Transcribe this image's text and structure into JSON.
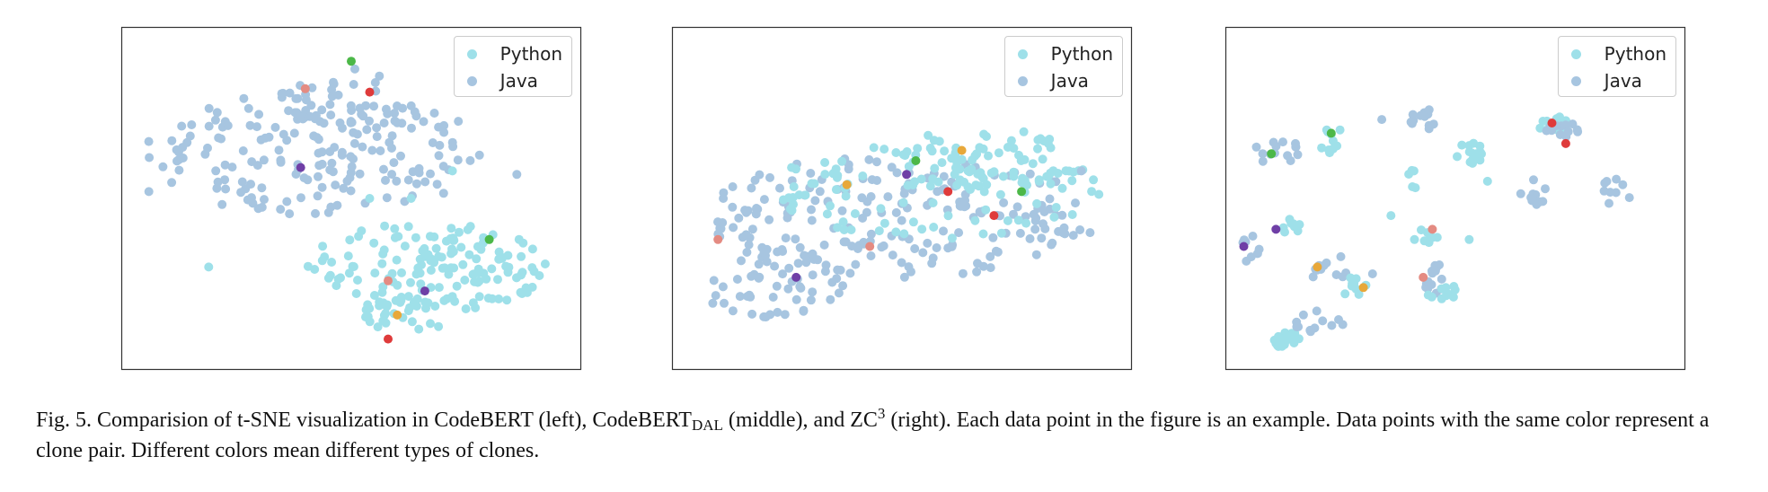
{
  "colors": {
    "python": "#9ee0e9",
    "java": "#a7c5e0",
    "clone_red": "#df3b3b",
    "clone_pink": "#e48b82",
    "clone_green": "#4cb848",
    "clone_purple": "#6f3fa6",
    "clone_orange": "#e8a83a",
    "frame": "#333333"
  },
  "legend": {
    "python": "Python",
    "java": "Java"
  },
  "caption": {
    "part1": "Fig. 5.  Comparision of t-SNE visualization in CodeBERT (left), CodeBERT",
    "sub": "DAL",
    "part2": " (middle), and ZC",
    "sup": "3",
    "part3": " (right). Each data point in the figure is an example. Data points with the same color represent a clone pair. Different colors mean different types of clones."
  },
  "chart_data": [
    {
      "type": "scatter",
      "panel": "left",
      "legend": [
        "Python",
        "Java"
      ],
      "legend_placement": "top-right",
      "grid": false,
      "axes_ticks": false,
      "xlim": [
        0,
        1
      ],
      "ylim": [
        0,
        1
      ],
      "clusters": [
        {
          "series": "Java",
          "cx": 0.42,
          "cy": 0.63,
          "rx": 0.37,
          "ry": 0.18,
          "n": 170,
          "seed": 11
        },
        {
          "series": "Java",
          "cx": 0.5,
          "cy": 0.76,
          "rx": 0.15,
          "ry": 0.12,
          "n": 45,
          "seed": 12
        },
        {
          "series": "Python",
          "cx": 0.67,
          "cy": 0.3,
          "rx": 0.27,
          "ry": 0.13,
          "n": 150,
          "seed": 13
        },
        {
          "series": "Python",
          "cx": 0.62,
          "cy": 0.17,
          "rx": 0.12,
          "ry": 0.06,
          "n": 25,
          "seed": 14
        }
      ],
      "extra_points": [
        {
          "series": "Python",
          "x": 0.19,
          "y": 0.3
        },
        {
          "series": "Python",
          "x": 0.72,
          "y": 0.58
        },
        {
          "series": "Python",
          "x": 0.63,
          "y": 0.5
        },
        {
          "series": "Python",
          "x": 0.54,
          "y": 0.5
        },
        {
          "series": "Java",
          "x": 0.06,
          "y": 0.52
        },
        {
          "series": "Java",
          "x": 0.86,
          "y": 0.57
        }
      ],
      "clone_pairs": [
        {
          "color": "red",
          "points": [
            [
              0.54,
              0.81
            ],
            [
              0.58,
              0.09
            ]
          ]
        },
        {
          "color": "green",
          "points": [
            [
              0.5,
              0.9
            ],
            [
              0.8,
              0.38
            ]
          ]
        },
        {
          "color": "pink",
          "points": [
            [
              0.4,
              0.82
            ],
            [
              0.58,
              0.26
            ]
          ]
        },
        {
          "color": "purple",
          "points": [
            [
              0.39,
              0.59
            ],
            [
              0.66,
              0.23
            ]
          ]
        },
        {
          "color": "orange",
          "points": [
            [
              0.6,
              0.16
            ]
          ]
        }
      ]
    },
    {
      "type": "scatter",
      "panel": "middle",
      "legend": [
        "Python",
        "Java"
      ],
      "legend_placement": "top-right",
      "grid": false,
      "axes_ticks": false,
      "xlim": [
        0,
        1
      ],
      "ylim": [
        0,
        1
      ],
      "clusters": [
        {
          "series": "Java",
          "cx": 0.5,
          "cy": 0.45,
          "rx": 0.43,
          "ry": 0.18,
          "n": 200,
          "seed": 21
        },
        {
          "series": "Java",
          "cx": 0.22,
          "cy": 0.25,
          "rx": 0.16,
          "ry": 0.1,
          "n": 55,
          "seed": 22
        },
        {
          "series": "Python",
          "cx": 0.58,
          "cy": 0.52,
          "rx": 0.36,
          "ry": 0.14,
          "n": 110,
          "seed": 23
        },
        {
          "series": "Python",
          "cx": 0.68,
          "cy": 0.62,
          "rx": 0.18,
          "ry": 0.09,
          "n": 50,
          "seed": 24
        }
      ],
      "extra_points": [
        {
          "series": "Java",
          "x": 0.89,
          "y": 0.58
        },
        {
          "series": "Java",
          "x": 0.85,
          "y": 0.4
        },
        {
          "series": "Python",
          "x": 0.26,
          "y": 0.59
        }
      ],
      "clone_pairs": [
        {
          "color": "red",
          "points": [
            [
              0.6,
              0.52
            ],
            [
              0.7,
              0.45
            ]
          ]
        },
        {
          "color": "green",
          "points": [
            [
              0.53,
              0.61
            ],
            [
              0.76,
              0.52
            ]
          ]
        },
        {
          "color": "pink",
          "points": [
            [
              0.1,
              0.38
            ],
            [
              0.43,
              0.36
            ]
          ]
        },
        {
          "color": "purple",
          "points": [
            [
              0.51,
              0.57
            ],
            [
              0.27,
              0.27
            ]
          ]
        },
        {
          "color": "orange",
          "points": [
            [
              0.38,
              0.54
            ],
            [
              0.63,
              0.64
            ]
          ]
        }
      ]
    },
    {
      "type": "scatter",
      "panel": "right",
      "legend": [
        "Python",
        "Java"
      ],
      "legend_placement": "top-right",
      "grid": false,
      "axes_ticks": false,
      "xlim": [
        0,
        1
      ],
      "ylim": [
        0,
        1
      ],
      "clusters": [
        {
          "series": "Java",
          "cx": 0.11,
          "cy": 0.64,
          "rx": 0.05,
          "ry": 0.04,
          "n": 14,
          "seed": 31
        },
        {
          "series": "Python",
          "cx": 0.23,
          "cy": 0.67,
          "rx": 0.03,
          "ry": 0.04,
          "n": 10,
          "seed": 32
        },
        {
          "series": "Java",
          "cx": 0.44,
          "cy": 0.73,
          "rx": 0.04,
          "ry": 0.03,
          "n": 12,
          "seed": 33
        },
        {
          "series": "Python",
          "cx": 0.53,
          "cy": 0.63,
          "rx": 0.03,
          "ry": 0.04,
          "n": 14,
          "seed": 34
        },
        {
          "series": "Python",
          "cx": 0.41,
          "cy": 0.56,
          "rx": 0.015,
          "ry": 0.03,
          "n": 5,
          "seed": 35
        },
        {
          "series": "Python",
          "cx": 0.72,
          "cy": 0.71,
          "rx": 0.04,
          "ry": 0.03,
          "n": 14,
          "seed": 36
        },
        {
          "series": "Java",
          "cx": 0.74,
          "cy": 0.69,
          "rx": 0.05,
          "ry": 0.03,
          "n": 12,
          "seed": 37
        },
        {
          "series": "Java",
          "cx": 0.67,
          "cy": 0.52,
          "rx": 0.03,
          "ry": 0.04,
          "n": 12,
          "seed": 38
        },
        {
          "series": "Java",
          "cx": 0.85,
          "cy": 0.52,
          "rx": 0.04,
          "ry": 0.04,
          "n": 9,
          "seed": 39
        },
        {
          "series": "Python",
          "cx": 0.14,
          "cy": 0.42,
          "rx": 0.03,
          "ry": 0.02,
          "n": 8,
          "seed": 40
        },
        {
          "series": "Java",
          "cx": 0.06,
          "cy": 0.35,
          "rx": 0.03,
          "ry": 0.04,
          "n": 8,
          "seed": 41
        },
        {
          "series": "Java",
          "cx": 0.22,
          "cy": 0.3,
          "rx": 0.05,
          "ry": 0.04,
          "n": 12,
          "seed": 42
        },
        {
          "series": "Python",
          "cx": 0.28,
          "cy": 0.24,
          "rx": 0.03,
          "ry": 0.03,
          "n": 10,
          "seed": 43
        },
        {
          "series": "Python",
          "cx": 0.44,
          "cy": 0.39,
          "rx": 0.04,
          "ry": 0.02,
          "n": 8,
          "seed": 44
        },
        {
          "series": "Java",
          "cx": 0.46,
          "cy": 0.27,
          "rx": 0.03,
          "ry": 0.05,
          "n": 14,
          "seed": 45
        },
        {
          "series": "Python",
          "cx": 0.48,
          "cy": 0.22,
          "rx": 0.04,
          "ry": 0.03,
          "n": 10,
          "seed": 46
        },
        {
          "series": "Python",
          "cx": 0.13,
          "cy": 0.09,
          "rx": 0.03,
          "ry": 0.025,
          "n": 18,
          "seed": 47
        },
        {
          "series": "Java",
          "cx": 0.2,
          "cy": 0.14,
          "rx": 0.06,
          "ry": 0.04,
          "n": 12,
          "seed": 48
        }
      ],
      "extra_points": [
        {
          "series": "Java",
          "x": 0.34,
          "y": 0.73
        },
        {
          "series": "Python",
          "x": 0.57,
          "y": 0.55
        },
        {
          "series": "Python",
          "x": 0.36,
          "y": 0.45
        },
        {
          "series": "Java",
          "x": 0.32,
          "y": 0.28
        },
        {
          "series": "Python",
          "x": 0.53,
          "y": 0.38
        }
      ],
      "clone_pairs": [
        {
          "color": "red",
          "points": [
            [
              0.71,
              0.72
            ],
            [
              0.74,
              0.66
            ]
          ]
        },
        {
          "color": "green",
          "points": [
            [
              0.1,
              0.63
            ],
            [
              0.23,
              0.69
            ]
          ]
        },
        {
          "color": "pink",
          "points": [
            [
              0.45,
              0.41
            ],
            [
              0.43,
              0.27
            ]
          ]
        },
        {
          "color": "purple",
          "points": [
            [
              0.11,
              0.41
            ],
            [
              0.04,
              0.36
            ]
          ]
        },
        {
          "color": "orange",
          "points": [
            [
              0.2,
              0.3
            ],
            [
              0.3,
              0.24
            ]
          ]
        }
      ]
    }
  ]
}
